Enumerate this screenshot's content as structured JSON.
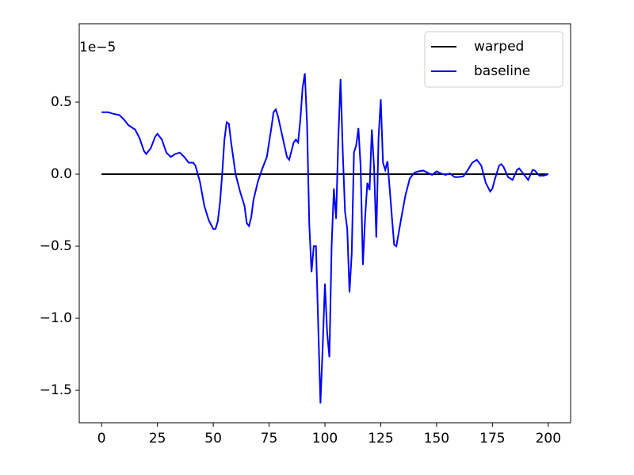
{
  "chart_data": {
    "type": "line",
    "offset_text": "1e−5",
    "series": [
      {
        "name": "warped",
        "color": "#000000",
        "x": [
          0,
          200
        ],
        "values": [
          0,
          0
        ]
      },
      {
        "name": "baseline",
        "color": "#0000ff",
        "x": [
          0,
          3,
          5,
          8,
          10,
          12,
          15,
          17,
          19,
          20,
          22,
          24,
          25,
          27,
          29,
          31,
          33,
          35,
          37,
          39,
          41,
          42,
          44,
          46,
          48,
          50,
          51,
          52,
          53,
          54,
          55,
          56,
          57,
          58,
          60,
          62,
          64,
          65,
          66,
          67,
          68,
          70,
          72,
          74,
          76,
          77,
          78,
          79,
          81,
          83,
          84,
          86,
          87,
          88,
          89,
          90,
          91,
          92,
          93,
          94,
          95,
          96,
          97,
          98,
          99,
          100,
          101,
          102,
          103,
          104,
          105,
          106,
          107,
          108,
          109,
          110,
          111,
          112,
          113,
          114,
          115,
          116,
          117,
          118,
          119,
          120,
          121,
          122,
          123,
          124,
          125,
          126,
          127,
          128,
          129,
          130,
          131,
          132,
          134,
          136,
          138,
          140,
          142,
          144,
          146,
          148,
          150,
          152,
          154,
          156,
          158,
          160,
          162,
          164,
          166,
          168,
          170,
          172,
          174,
          175,
          176,
          178,
          179,
          180,
          182,
          184,
          186,
          187,
          189,
          191,
          193,
          194,
          196,
          198,
          200
        ],
        "values": [
          0.43,
          0.43,
          0.42,
          0.41,
          0.38,
          0.34,
          0.31,
          0.25,
          0.16,
          0.14,
          0.18,
          0.26,
          0.28,
          0.24,
          0.15,
          0.12,
          0.14,
          0.15,
          0.12,
          0.08,
          0.08,
          0.06,
          -0.05,
          -0.22,
          -0.32,
          -0.38,
          -0.38,
          -0.33,
          -0.2,
          0.0,
          0.24,
          0.36,
          0.35,
          0.22,
          0.0,
          -0.12,
          -0.22,
          -0.34,
          -0.36,
          -0.3,
          -0.18,
          -0.05,
          0.04,
          0.12,
          0.32,
          0.43,
          0.45,
          0.4,
          0.26,
          0.12,
          0.1,
          0.22,
          0.24,
          0.22,
          0.38,
          0.6,
          0.7,
          0.35,
          -0.35,
          -0.68,
          -0.5,
          -0.5,
          -1.05,
          -1.59,
          -1.2,
          -0.76,
          -1.1,
          -1.27,
          -0.5,
          -0.1,
          -0.31,
          0.25,
          0.66,
          0.15,
          -0.26,
          -0.38,
          -0.82,
          -0.55,
          0.15,
          0.2,
          0.32,
          0.05,
          -0.63,
          -0.3,
          -0.06,
          -0.11,
          0.31,
          0.05,
          -0.44,
          0.25,
          0.52,
          0.08,
          0.03,
          0.09,
          -0.1,
          -0.3,
          -0.49,
          -0.5,
          -0.32,
          -0.15,
          -0.03,
          0.01,
          0.02,
          0.025,
          0.01,
          -0.005,
          0.02,
          0.005,
          -0.005,
          0.005,
          -0.02,
          -0.02,
          -0.015,
          0.03,
          0.08,
          0.1,
          0.06,
          -0.06,
          -0.12,
          -0.1,
          -0.04,
          0.06,
          0.07,
          0.05,
          -0.02,
          -0.04,
          0.03,
          0.04,
          0.0,
          -0.04,
          0.03,
          0.025,
          -0.01,
          -0.01,
          0.0
        ]
      }
    ],
    "xlim": [
      -10,
      210
    ],
    "xticks": [
      0,
      25,
      50,
      75,
      100,
      125,
      150,
      175,
      200
    ],
    "ylim": [
      -1.725,
      1.044
    ],
    "yticks": [
      {
        "value": -1.5,
        "label": "−1.5"
      },
      {
        "value": -1.0,
        "label": "−1.0"
      },
      {
        "value": -0.5,
        "label": "−0.5"
      },
      {
        "value": 0,
        "label": "0.0"
      },
      0.5
    ],
    "legend": "upper right"
  }
}
